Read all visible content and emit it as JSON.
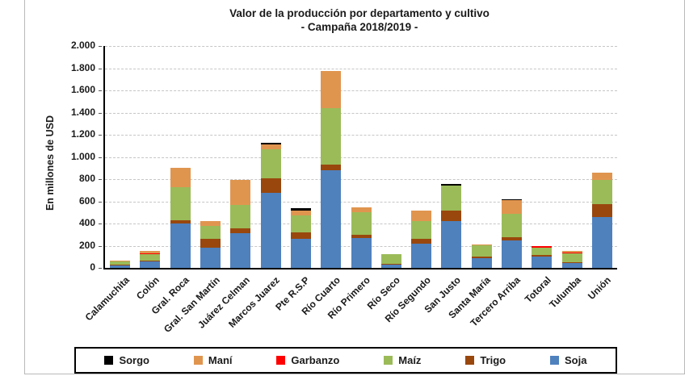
{
  "page": {
    "title_line1": "Valor de la producción por departamento y cultivo",
    "title_line2": "- Campaña 2018/2019 -"
  },
  "chart_data": {
    "type": "bar",
    "stacked": true,
    "title": "Valor de la producción por departamento y cultivo - Campaña 2018/2019 -",
    "xlabel": "",
    "ylabel": "En millones de USD",
    "ylim": [
      0,
      2000
    ],
    "ytick_step": 200,
    "ytick_labels": [
      "0",
      "200",
      "400",
      "600",
      "800",
      "1.000",
      "1.200",
      "1.400",
      "1.600",
      "1.800",
      "2.000"
    ],
    "grid": "horizontal dashed",
    "legend_position": "bottom",
    "categories": [
      "Calamuchita",
      "Colón",
      "Gral. Roca",
      "Gral. San Martín",
      "Juárez Celman",
      "Marcos Juarez",
      "Pte R.S.P",
      "Río Cuarto",
      "Río Primero",
      "Río Seco",
      "Río Segundo",
      "San Justo",
      "Santa María",
      "Tercero Arriba",
      "Totoral",
      "Tulumba",
      "Unión"
    ],
    "series": [
      {
        "name": "Soja",
        "color": "#4F81BD",
        "values": [
          25,
          60,
          400,
          185,
          310,
          675,
          260,
          880,
          270,
          35,
          215,
          425,
          90,
          250,
          100,
          45,
          455
        ]
      },
      {
        "name": "Trigo",
        "color": "#99470D",
        "values": [
          5,
          5,
          30,
          75,
          45,
          130,
          60,
          50,
          30,
          5,
          45,
          90,
          10,
          30,
          15,
          5,
          120
        ]
      },
      {
        "name": "Maíz",
        "color": "#9BBB59",
        "values": [
          30,
          60,
          300,
          115,
          210,
          265,
          155,
          510,
          205,
          85,
          165,
          225,
          105,
          205,
          70,
          80,
          215
        ]
      },
      {
        "name": "Garbanzo",
        "color": "#FF0000",
        "values": [
          0,
          5,
          0,
          0,
          0,
          0,
          0,
          0,
          0,
          0,
          0,
          0,
          0,
          0,
          10,
          5,
          0
        ]
      },
      {
        "name": "Maní",
        "color": "#E0954F",
        "values": [
          5,
          20,
          175,
          45,
          225,
          40,
          45,
          335,
          40,
          0,
          90,
          0,
          5,
          125,
          0,
          15,
          65
        ]
      },
      {
        "name": "Sorgo",
        "color": "#000000",
        "values": [
          0,
          0,
          0,
          0,
          0,
          15,
          15,
          0,
          0,
          0,
          0,
          15,
          0,
          10,
          0,
          0,
          0
        ]
      }
    ],
    "legend_order": [
      "Sorgo",
      "Maní",
      "Garbanzo",
      "Maíz",
      "Trigo",
      "Soja"
    ]
  }
}
